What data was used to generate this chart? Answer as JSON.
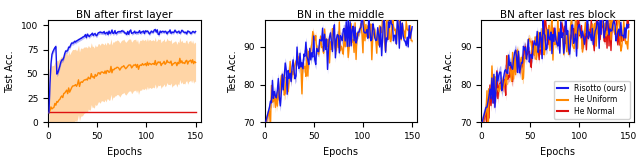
{
  "titles": [
    "BN after first layer",
    "BN in the middle",
    "BN after last res block"
  ],
  "xlabel": "Epochs",
  "ylabel": "Test Acc.",
  "epochs": 150,
  "colors": {
    "blue": "#1515ee",
    "orange": "#ff8800",
    "red": "#dd1111"
  },
  "plot1": {
    "ylim": [
      0,
      105
    ],
    "yticks": [
      0,
      25,
      50,
      75,
      100
    ],
    "xticks": [
      0,
      50,
      100,
      150
    ]
  },
  "plot2": {
    "ylim": [
      70,
      97
    ],
    "yticks": [
      70,
      80,
      90
    ],
    "xticks": [
      0,
      50,
      100,
      150
    ]
  },
  "plot3": {
    "ylim": [
      70,
      97
    ],
    "yticks": [
      70,
      80,
      90
    ],
    "xticks": [
      0,
      50,
      100,
      150
    ]
  },
  "legend_labels": [
    "Risotto (ours)",
    "He Uniform",
    "He Normal"
  ]
}
